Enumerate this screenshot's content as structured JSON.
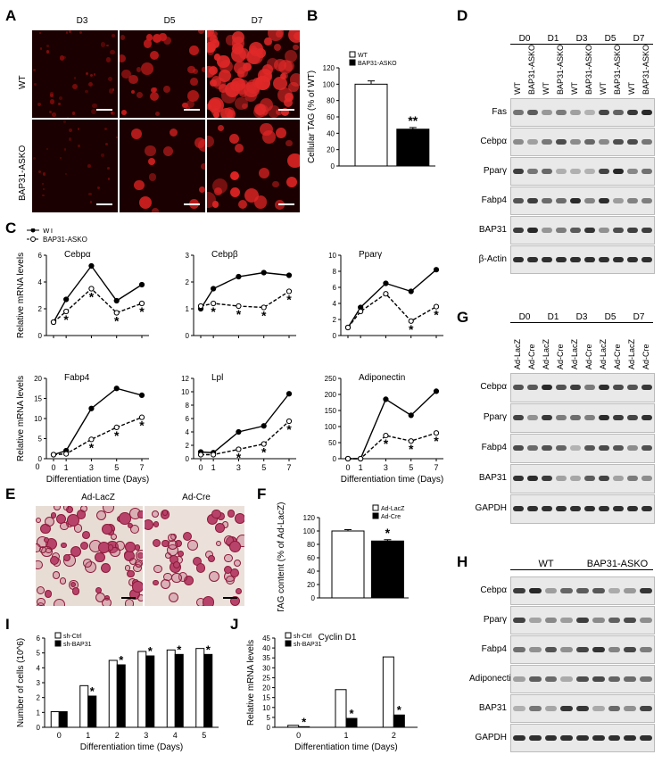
{
  "panels": {
    "A": {
      "letter": "A",
      "cols": [
        "D3",
        "D5",
        "D7"
      ],
      "rows": [
        "WT",
        "BAP31-ASKO"
      ]
    },
    "B": {
      "letter": "B"
    },
    "C": {
      "letter": "C",
      "legend": [
        "WT",
        "BAP31-ASKO"
      ]
    },
    "D": {
      "letter": "D",
      "days": [
        "D0",
        "D1",
        "D3",
        "D5",
        "D7"
      ],
      "lanes": [
        "WT",
        "BAP31-ASKO"
      ],
      "proteins": [
        "Fas",
        "Cebpα",
        "Pparγ",
        "Fabp4",
        "BAP31",
        "β-Actin"
      ]
    },
    "E": {
      "letter": "E",
      "titles": [
        "Ad-LacZ",
        "Ad-Cre"
      ]
    },
    "F": {
      "letter": "F"
    },
    "G": {
      "letter": "G",
      "days": [
        "D0",
        "D1",
        "D3",
        "D5",
        "D7"
      ],
      "lanes": [
        "Ad-LacZ",
        "Ad-Cre"
      ],
      "proteins": [
        "Cebpα",
        "Pparγ",
        "Fabp4",
        "BAP31",
        "GAPDH"
      ]
    },
    "H": {
      "letter": "H",
      "groups": [
        "WT",
        "BAP31-ASKO"
      ],
      "proteins": [
        "Cebpα",
        "Pparγ",
        "Fabp4",
        "Adiponectin",
        "BAP31",
        "GAPDH"
      ]
    },
    "I": {
      "letter": "I"
    },
    "J": {
      "letter": "J"
    }
  },
  "chart_data": [
    {
      "id": "B",
      "type": "bar",
      "categories": [
        "WT",
        "BAP31-ASKO"
      ],
      "values": [
        100,
        45
      ],
      "errors": [
        4,
        2
      ],
      "colors": [
        "#ffffff",
        "#000000"
      ],
      "ylabel": "Cellular TAG (% of WT)",
      "ylim": [
        0,
        120
      ],
      "yticks": [
        0,
        20,
        40,
        60,
        80,
        100,
        120
      ],
      "legend": [
        "WT",
        "BAP31-ASKO"
      ],
      "annotations": [
        "",
        "**"
      ]
    },
    {
      "id": "C1",
      "type": "line",
      "title": "Cebpα",
      "x": [
        0,
        1,
        3,
        5,
        7
      ],
      "series": [
        {
          "name": "WT",
          "values": [
            1,
            2.7,
            5.2,
            2.6,
            3.8
          ]
        },
        {
          "name": "BAP31-ASKO",
          "values": [
            1,
            1.8,
            3.5,
            1.7,
            2.4
          ]
        }
      ],
      "ylim": [
        0,
        6
      ],
      "yticks": [
        0,
        2,
        4,
        6
      ],
      "ylabel": "Relative mRNA levels",
      "stars": [
        1,
        3,
        5,
        7
      ]
    },
    {
      "id": "C2",
      "type": "line",
      "title": "Cebpβ",
      "x": [
        0,
        1,
        3,
        5,
        7
      ],
      "series": [
        {
          "name": "WT",
          "values": [
            1,
            1.75,
            2.2,
            2.35,
            2.25
          ]
        },
        {
          "name": "BAP31-ASKO",
          "values": [
            1.1,
            1.2,
            1.1,
            1.05,
            1.65
          ]
        }
      ],
      "ylim": [
        0,
        3
      ],
      "yticks": [
        0,
        1,
        2,
        3
      ],
      "stars": [
        1,
        3,
        5,
        7
      ]
    },
    {
      "id": "C3",
      "type": "line",
      "title": "Pparγ",
      "x": [
        0,
        1,
        3,
        5,
        7
      ],
      "series": [
        {
          "name": "WT",
          "values": [
            1,
            3.5,
            6.5,
            5.5,
            8.2
          ]
        },
        {
          "name": "BAP31-ASKO",
          "values": [
            1,
            3,
            5.2,
            1.8,
            3.6
          ]
        }
      ],
      "ylim": [
        0,
        10
      ],
      "yticks": [
        0,
        2,
        4,
        6,
        8,
        10
      ],
      "stars": [
        5,
        7
      ]
    },
    {
      "id": "C4",
      "type": "line",
      "title": "Fabp4",
      "x": [
        0,
        1,
        3,
        5,
        7
      ],
      "series": [
        {
          "name": "WT",
          "values": [
            1,
            2,
            12.5,
            17.5,
            15.8
          ]
        },
        {
          "name": "BAP31-ASKO",
          "values": [
            1,
            1.2,
            4.8,
            7.8,
            10.3
          ]
        }
      ],
      "ylim": [
        0,
        20
      ],
      "yticks": [
        0,
        5,
        10,
        15,
        20
      ],
      "ylabel": "Relative mRNA levels",
      "xlabel": "Differentiation time (Days)",
      "stars": [
        3,
        5,
        7
      ]
    },
    {
      "id": "C5",
      "type": "line",
      "title": "Lpl",
      "x": [
        0,
        1,
        3,
        5,
        7
      ],
      "series": [
        {
          "name": "WT",
          "values": [
            1,
            0.9,
            4,
            4.9,
            9.7
          ]
        },
        {
          "name": "BAP31-ASKO",
          "values": [
            0.6,
            0.6,
            1.4,
            2.2,
            5.6
          ]
        }
      ],
      "ylim": [
        0,
        12
      ],
      "yticks": [
        0,
        2,
        4,
        6,
        8,
        10,
        12
      ],
      "stars": [
        3,
        5,
        7
      ]
    },
    {
      "id": "C6",
      "type": "line",
      "title": "Adiponectin",
      "x": [
        0,
        1,
        3,
        5,
        7
      ],
      "series": [
        {
          "name": "WT",
          "values": [
            0,
            0,
            185,
            135,
            210
          ]
        },
        {
          "name": "BAP31-ASKO",
          "values": [
            0,
            0,
            72,
            55,
            80
          ]
        }
      ],
      "ylim": [
        0,
        250
      ],
      "yticks": [
        0,
        50,
        100,
        150,
        200,
        250
      ],
      "xlabel": "Differentiation time (Days)",
      "stars": [
        3,
        5,
        7
      ]
    },
    {
      "id": "F",
      "type": "bar",
      "categories": [
        "Ad-LacZ",
        "Ad-Cre"
      ],
      "values": [
        100,
        85
      ],
      "errors": [
        2,
        2
      ],
      "colors": [
        "#ffffff",
        "#000000"
      ],
      "ylabel": "TAG content (% of Ad-LacZ)",
      "ylim": [
        0,
        120
      ],
      "yticks": [
        0,
        20,
        40,
        60,
        80,
        100,
        120
      ],
      "legend": [
        "Ad-LacZ",
        "Ad-Cre"
      ],
      "annotations": [
        "",
        "*"
      ]
    },
    {
      "id": "I",
      "type": "bar",
      "categories": [
        "0",
        "1",
        "2",
        "3",
        "4",
        "5"
      ],
      "series": [
        {
          "name": "sh-Ctrl",
          "values": [
            1.05,
            2.8,
            4.5,
            5.1,
            5.2,
            5.3
          ]
        },
        {
          "name": "sh-BAP31",
          "values": [
            1.05,
            2.1,
            4.2,
            4.8,
            4.9,
            4.9
          ]
        }
      ],
      "ylabel": "Number of cells (10^6)",
      "xlabel": "Differentiation time (Days)",
      "ylim": [
        0,
        6
      ],
      "yticks": [
        0,
        1,
        2,
        3,
        4,
        5,
        6
      ],
      "stars": [
        1,
        2,
        3,
        4,
        5
      ]
    },
    {
      "id": "J",
      "type": "bar",
      "title": "Cyclin D1",
      "categories": [
        "0",
        "1",
        "2"
      ],
      "series": [
        {
          "name": "sh-Ctrl",
          "values": [
            1,
            19,
            35.5
          ]
        },
        {
          "name": "sh-BAP31",
          "values": [
            0.3,
            4.5,
            6.2
          ]
        }
      ],
      "ylabel": "Relative mRNA levels",
      "xlabel": "Differentiation time (Days)",
      "ylim": [
        0,
        45
      ],
      "yticks": [
        0,
        5,
        10,
        15,
        20,
        25,
        30,
        35,
        40,
        45
      ],
      "stars": [
        0,
        1,
        2
      ]
    }
  ]
}
